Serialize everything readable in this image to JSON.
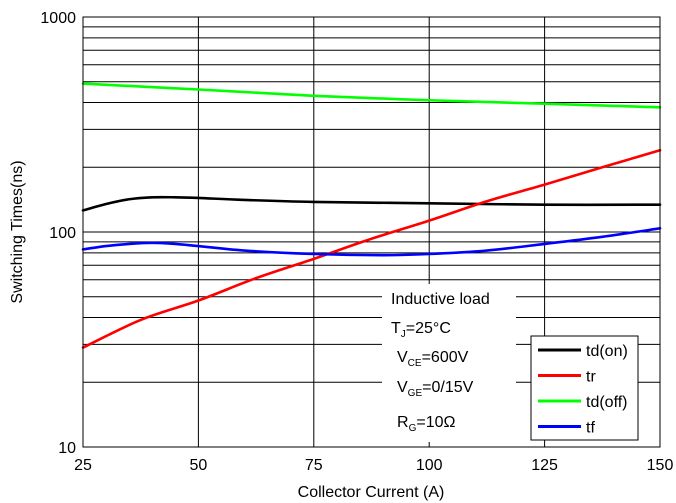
{
  "chart_data": {
    "type": "line",
    "xlabel": "Collector Current (A)",
    "ylabel": "Switching Times(ns)",
    "xlim": [
      25,
      150
    ],
    "ylim": [
      10,
      1000
    ],
    "y_scale": "log",
    "grid": true,
    "x_ticks": [
      "25",
      "50",
      "75",
      "100",
      "125",
      "150"
    ],
    "y_ticks": [
      "10",
      "100",
      "1000"
    ],
    "conditions": {
      "load": "Inductive load",
      "tj": {
        "main": "T",
        "sub": "J",
        "rest": "=25°C"
      },
      "vce": {
        "main": "V",
        "sub": "CE",
        "rest": "=600V"
      },
      "vge": {
        "main": "V",
        "sub": "GE",
        "rest": "=0/15V"
      },
      "rg": {
        "main": "R",
        "sub": "G",
        "rest": "=10Ω"
      }
    },
    "legend_position": "bottom-right",
    "series": [
      {
        "name": "td(on)",
        "color": "#000000",
        "x": [
          25,
          30,
          35,
          40,
          45,
          50,
          60,
          75,
          100,
          125,
          150
        ],
        "y": [
          126,
          135,
          142,
          145,
          145,
          144,
          141,
          138,
          136,
          134,
          134
        ]
      },
      {
        "name": "tr",
        "color": "#ff0000",
        "x": [
          25,
          37.5,
          50,
          62.5,
          75,
          87.5,
          100,
          112.5,
          125,
          137.5,
          150
        ],
        "y": [
          29,
          39,
          48,
          61,
          75,
          93,
          113,
          139,
          166,
          200,
          240
        ]
      },
      {
        "name": "td(off)",
        "color": "#00ff00",
        "x": [
          25,
          50,
          75,
          100,
          125,
          150
        ],
        "y": [
          490,
          460,
          430,
          410,
          395,
          380
        ]
      },
      {
        "name": "tf",
        "color": "#0000ff",
        "x": [
          25,
          30,
          35,
          40,
          45,
          50,
          60,
          75,
          90,
          100,
          112.5,
          125,
          137.5,
          150
        ],
        "y": [
          83,
          86,
          88,
          89,
          88,
          86,
          82,
          79,
          78,
          79,
          82,
          88,
          95,
          104
        ]
      }
    ]
  }
}
